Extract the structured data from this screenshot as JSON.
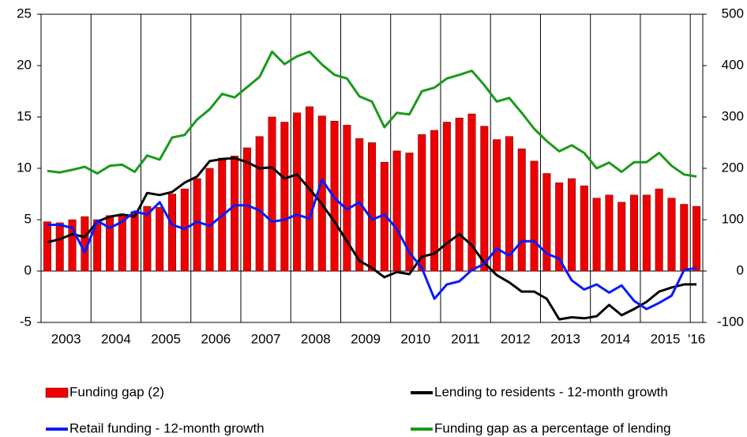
{
  "chart_data": {
    "type": "bar-line",
    "categories": [
      "2003",
      null,
      null,
      null,
      "2004",
      null,
      null,
      null,
      "2005",
      null,
      null,
      null,
      "2006",
      null,
      null,
      null,
      "2007",
      null,
      null,
      null,
      "2008",
      null,
      null,
      null,
      "2009",
      null,
      null,
      null,
      "2010",
      null,
      null,
      null,
      "2011",
      null,
      null,
      null,
      "2012",
      null,
      null,
      null,
      "2013",
      null,
      null,
      null,
      "2014",
      null,
      null,
      null,
      "2015",
      null,
      null,
      null,
      "'16"
    ],
    "series": [
      {
        "name": "Funding gap (2)",
        "kind": "bar",
        "color": "#ee0000",
        "values": [
          4.8,
          4.7,
          5.0,
          5.3,
          5.0,
          5.4,
          5.5,
          5.8,
          6.3,
          6.2,
          7.5,
          8.0,
          9.0,
          10.0,
          11.0,
          11.2,
          12.0,
          13.1,
          15.0,
          14.5,
          15.4,
          16.0,
          15.1,
          14.6,
          14.2,
          12.9,
          12.5,
          10.6,
          11.7,
          11.5,
          13.3,
          13.7,
          14.5,
          14.9,
          15.3,
          14.1,
          12.8,
          13.1,
          11.9,
          10.7,
          9.5,
          8.6,
          9.0,
          8.3,
          7.1,
          7.4,
          6.7,
          7.4,
          7.4,
          8.0,
          7.1,
          6.5,
          6.3
        ]
      },
      {
        "name": "Lending to residents - 12-month growth",
        "kind": "line",
        "color": "#000000",
        "values": [
          2.8,
          3.1,
          3.6,
          3.3,
          4.8,
          5.3,
          5.5,
          5.3,
          7.6,
          7.4,
          7.7,
          8.6,
          9.2,
          10.7,
          10.9,
          11.0,
          10.6,
          10.0,
          10.1,
          9.0,
          9.4,
          8.0,
          6.5,
          4.8,
          2.9,
          1.0,
          0.3,
          -0.6,
          -0.1,
          -0.3,
          1.4,
          1.7,
          2.7,
          3.6,
          2.5,
          0.8,
          -0.4,
          -1.1,
          -2.0,
          -2.0,
          -2.7,
          -4.7,
          -4.5,
          -4.6,
          -4.4,
          -3.3,
          -4.3,
          -3.7,
          -3.0,
          -2.0,
          -1.6,
          -1.3,
          -1.3
        ]
      },
      {
        "name": "Retail funding - 12-month growth",
        "kind": "line",
        "color": "#0a1aff",
        "values": [
          4.5,
          4.5,
          4.2,
          1.8,
          4.9,
          4.2,
          4.8,
          5.8,
          5.5,
          6.7,
          4.5,
          4.1,
          4.8,
          4.4,
          5.4,
          6.4,
          6.4,
          5.9,
          4.8,
          5.0,
          5.5,
          5.1,
          8.9,
          7.1,
          6.0,
          6.7,
          5.0,
          5.5,
          4.1,
          1.8,
          0.3,
          -2.7,
          -1.3,
          -1.0,
          0.1,
          0.7,
          2.2,
          1.5,
          2.9,
          2.9,
          1.7,
          1.2,
          -0.9,
          -1.8,
          -1.3,
          -2.1,
          -1.4,
          -2.9,
          -3.7,
          -3.1,
          -2.4,
          0.1,
          0.3
        ]
      },
      {
        "name": "Funding gap as a percentage of lending",
        "kind": "line",
        "axis": "y2",
        "color": "#1a9a1a",
        "values": [
          195,
          192,
          197,
          203,
          190,
          205,
          207,
          193,
          225,
          217,
          260,
          265,
          295,
          315,
          345,
          338,
          358,
          378,
          427,
          403,
          418,
          427,
          402,
          382,
          375,
          340,
          330,
          280,
          308,
          305,
          350,
          357,
          375,
          382,
          390,
          362,
          330,
          337,
          308,
          277,
          253,
          233,
          245,
          230,
          200,
          211,
          193,
          212,
          212,
          230,
          205,
          188,
          184
        ]
      }
    ],
    "ylim": [
      -5,
      25
    ],
    "yticks": [
      -5,
      0,
      5,
      10,
      15,
      20,
      25
    ],
    "y2lim": [
      -100,
      500
    ],
    "y2ticks": [
      -100,
      0,
      100,
      200,
      300,
      400,
      500
    ]
  }
}
